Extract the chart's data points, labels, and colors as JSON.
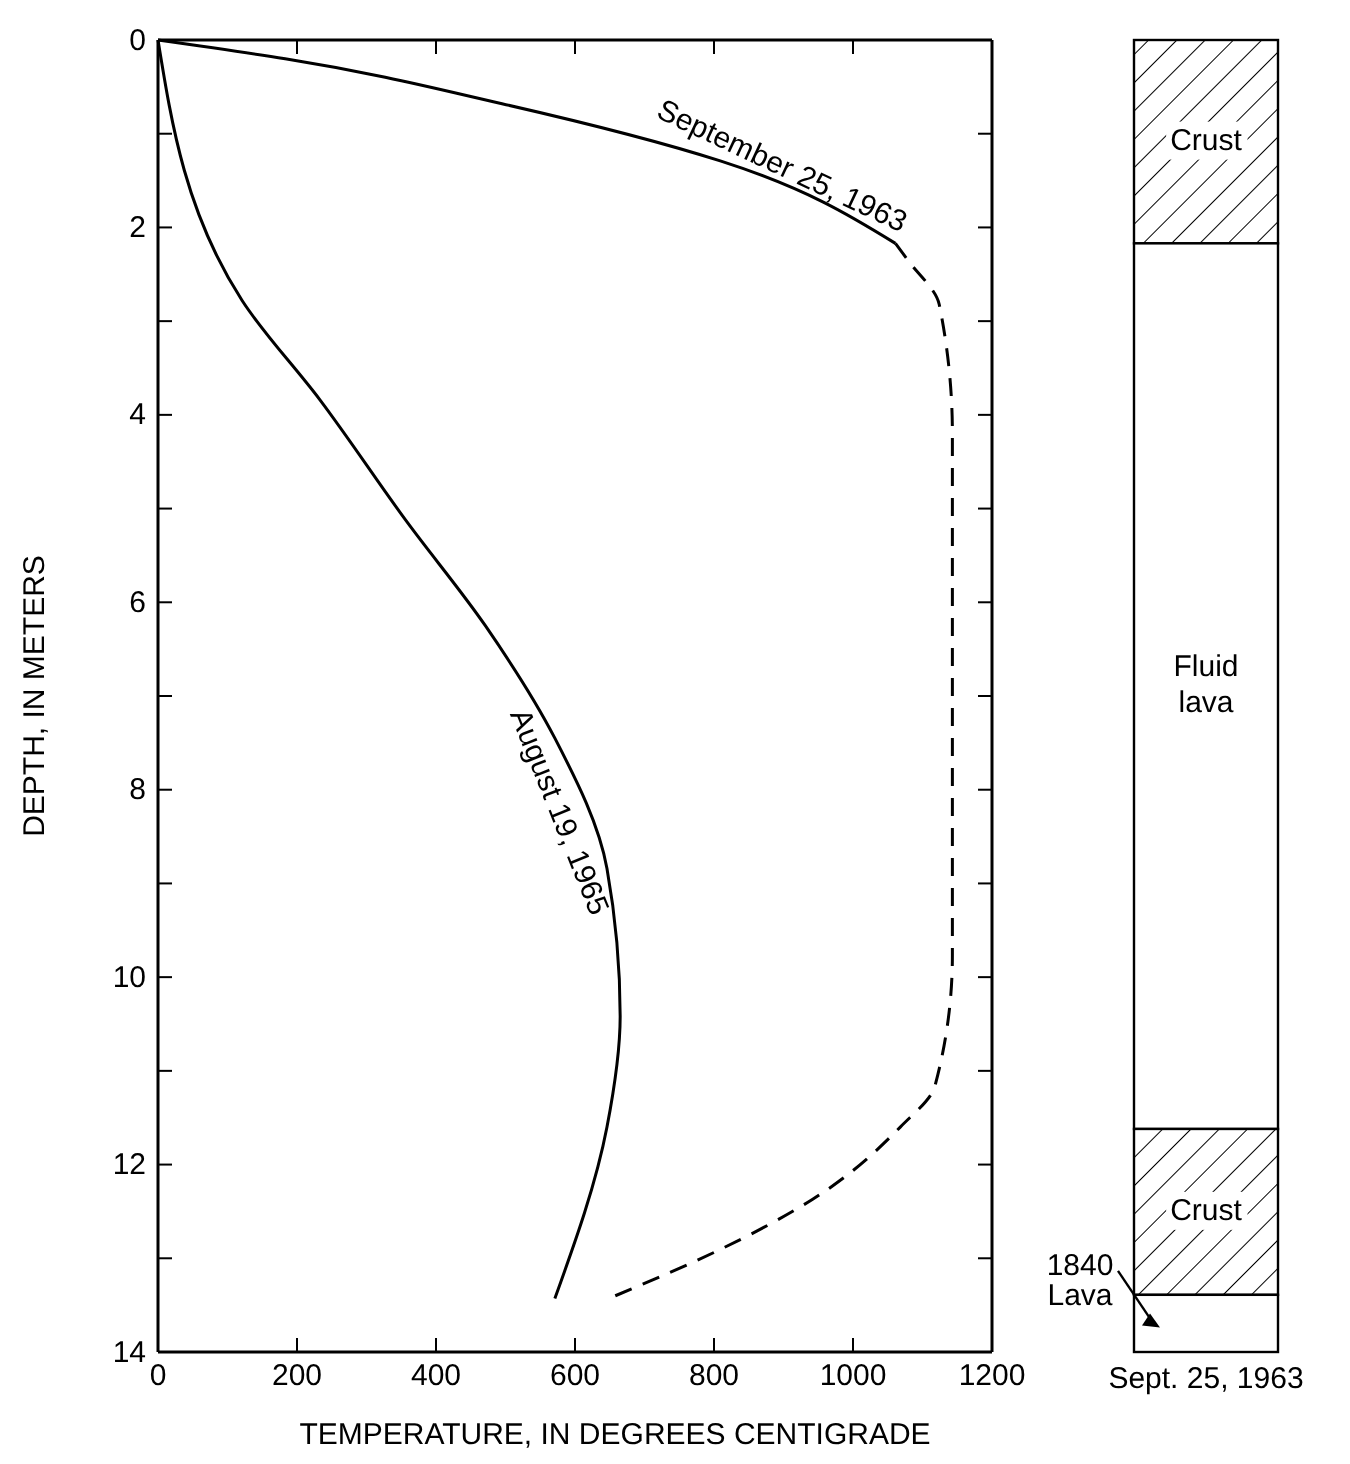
{
  "chart_data": [
    {
      "type": "line",
      "xlabel": "TEMPERATURE, IN DEGREES CENTIGRADE",
      "ylabel": "DEPTH, IN METERS",
      "xlim": [
        0,
        1200
      ],
      "ylim": [
        14,
        0
      ],
      "xticks": [
        0,
        200,
        400,
        600,
        800,
        1000,
        1200
      ],
      "yticks": [
        0,
        {
          "value": 1,
          "label": null
        },
        2,
        {
          "value": 3,
          "label": null
        },
        4,
        {
          "value": 5,
          "label": null
        },
        6,
        {
          "value": 7,
          "label": null
        },
        8,
        {
          "value": 9,
          "label": null
        },
        10,
        {
          "value": 11,
          "label": null
        },
        12,
        {
          "value": 13,
          "label": null
        },
        14
      ],
      "marker": "none",
      "series": [
        {
          "name": "September 25, 1963",
          "color": "#000000",
          "line_style": "solid",
          "x": [
            0,
            183,
            495,
            809,
            1061
          ],
          "values": [
            0,
            0.2,
            0.68,
            1.29,
            2.17
          ]
        },
        {
          "color": "#000000",
          "line_style": "dashed",
          "x": [
            1061,
            1079,
            1124,
            1143,
            1143,
            1118,
            1068,
            942,
            805,
            658
          ],
          "values": [
            2.17,
            2.35,
            2.82,
            4.2,
            9.77,
            11.16,
            11.6,
            12.37,
            12.92,
            13.4
          ]
        },
        {
          "name": "August 19, 1965",
          "color": "#000000",
          "line_style": "solid",
          "x": [
            0,
            121,
            233,
            358,
            471,
            571,
            646,
            665,
            646,
            571
          ],
          "values": [
            0,
            2.78,
            3.84,
            5.14,
            6.25,
            7.45,
            8.84,
            10.42,
            11.6,
            13.43
          ]
        }
      ]
    },
    {
      "type": "bar",
      "stacked": true,
      "categories": [
        "Sept. 25, 1963"
      ],
      "ylim": [
        14,
        0
      ],
      "tick_labels": "x",
      "series": [
        {
          "name": "Crust",
          "color": "#000000",
          "values": [
            2.17
          ]
        },
        {
          "name": "Fluid lava",
          "color": "#ffffff",
          "values": [
            9.45
          ]
        },
        {
          "name": "Crust",
          "color": "#000000",
          "values": [
            1.77
          ]
        },
        {
          "name": "1840 Lava",
          "color": "#ffffff",
          "values": [
            0.61
          ]
        }
      ]
    }
  ]
}
